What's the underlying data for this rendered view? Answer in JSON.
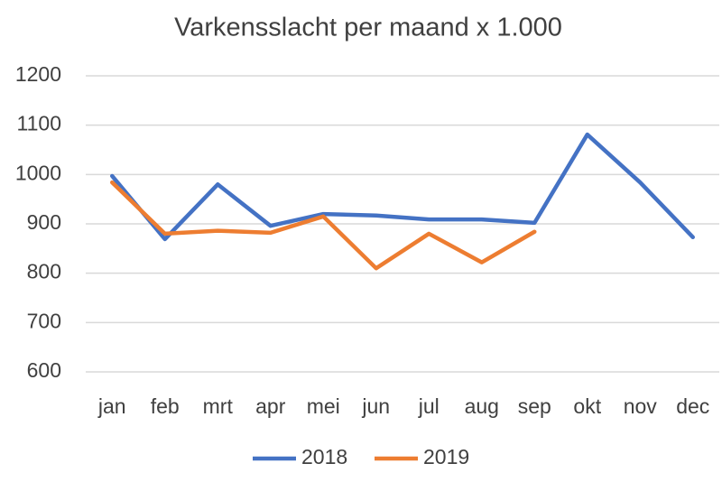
{
  "chart_data": {
    "type": "line",
    "title": "Varkensslacht per maand x 1.000",
    "categories": [
      "jan",
      "feb",
      "mrt",
      "apr",
      "mei",
      "jun",
      "jul",
      "aug",
      "sep",
      "okt",
      "nov",
      "dec"
    ],
    "series": [
      {
        "name": "2018",
        "color": "#4472c4",
        "values": [
          997,
          869,
          980,
          896,
          920,
          917,
          909,
          909,
          902,
          1081,
          984,
          873
        ]
      },
      {
        "name": "2019",
        "color": "#ed7d31",
        "values": [
          984,
          880,
          886,
          882,
          915,
          810,
          880,
          822,
          884,
          null,
          null,
          null
        ]
      }
    ],
    "ylim": [
      600,
      1200
    ],
    "yticks": [
      600,
      700,
      800,
      900,
      1000,
      1100,
      1200
    ],
    "grid": true,
    "legend": "bottom"
  }
}
